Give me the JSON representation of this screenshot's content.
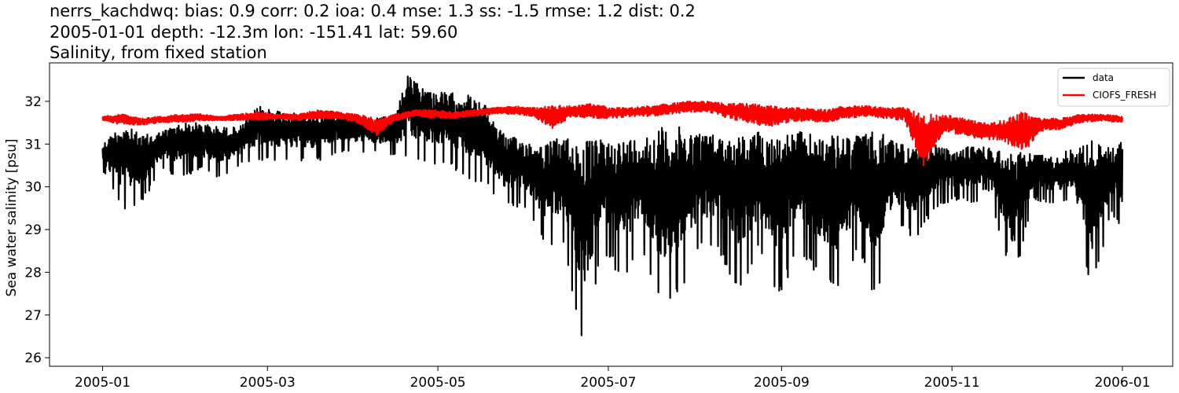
{
  "chart_data": {
    "type": "line",
    "title_lines": [
      "nerrs_kachdwq: bias: 0.9  corr: 0.2  ioa: 0.4  mse: 1.3  ss: -1.5  rmse: 1.2  dist: 0.2",
      "2005-01-01 depth: -12.3m lon: -151.41 lat: 59.60",
      "Salinity, from fixed station"
    ],
    "xlabel": "",
    "ylabel": "Sea water salinity [psu]",
    "x_range": [
      "2004-12-13",
      "2006-01-19"
    ],
    "ylim": [
      25.8,
      32.9
    ],
    "x_ticks": [
      "2005-01",
      "2005-03",
      "2005-05",
      "2005-07",
      "2005-09",
      "2005-11",
      "2006-01"
    ],
    "y_ticks": [
      26,
      27,
      28,
      29,
      30,
      31,
      32
    ],
    "grid": false,
    "legend_position": "top-right",
    "series": [
      {
        "name": "data",
        "color": "#000000",
        "envelope": {
          "x": [
            "2005-01-01",
            "2005-01-08",
            "2005-01-15",
            "2005-01-22",
            "2005-01-29",
            "2005-02-05",
            "2005-02-12",
            "2005-02-19",
            "2005-02-26",
            "2005-03-05",
            "2005-03-12",
            "2005-03-19",
            "2005-03-26",
            "2005-04-02",
            "2005-04-09",
            "2005-04-16",
            "2005-04-20",
            "2005-04-27",
            "2005-05-04",
            "2005-05-11",
            "2005-05-18",
            "2005-05-25",
            "2005-06-01",
            "2005-06-08",
            "2005-06-15",
            "2005-06-22",
            "2005-06-29",
            "2005-07-06",
            "2005-07-13",
            "2005-07-20",
            "2005-07-27",
            "2005-08-03",
            "2005-08-10",
            "2005-08-17",
            "2005-08-24",
            "2005-08-31",
            "2005-09-07",
            "2005-09-14",
            "2005-09-21",
            "2005-09-28",
            "2005-10-05",
            "2005-10-12",
            "2005-10-19",
            "2005-10-26",
            "2005-11-02",
            "2005-11-09",
            "2005-11-16",
            "2005-11-23",
            "2005-11-30",
            "2005-12-07",
            "2005-12-14",
            "2005-12-21",
            "2005-12-28",
            "2006-01-01"
          ],
          "max": [
            31.0,
            31.5,
            31.2,
            31.3,
            31.5,
            31.5,
            31.4,
            31.4,
            31.9,
            31.8,
            31.7,
            31.7,
            31.8,
            31.7,
            31.6,
            31.7,
            32.6,
            32.3,
            32.2,
            32.2,
            31.9,
            31.2,
            31.1,
            31.0,
            31.2,
            31.1,
            31.1,
            31.1,
            31.2,
            31.4,
            31.4,
            31.3,
            31.2,
            31.2,
            31.3,
            31.2,
            31.3,
            31.2,
            31.2,
            31.2,
            31.3,
            31.1,
            30.9,
            31.0,
            30.8,
            31.0,
            30.9,
            30.8,
            30.8,
            30.7,
            30.9,
            31.1,
            30.9,
            31.1
          ],
          "min": [
            30.4,
            29.4,
            29.6,
            30.4,
            30.2,
            30.4,
            30.2,
            30.5,
            30.6,
            30.6,
            30.6,
            30.6,
            30.8,
            30.8,
            30.8,
            30.7,
            30.6,
            30.5,
            30.5,
            30.2,
            30.0,
            29.5,
            29.5,
            28.6,
            28.6,
            26.1,
            28.5,
            27.8,
            28.4,
            27.0,
            27.4,
            28.5,
            28.4,
            27.5,
            28.5,
            27.3,
            28.5,
            27.8,
            27.4,
            28.5,
            27.2,
            29.0,
            28.8,
            29.5,
            29.7,
            29.6,
            29.4,
            27.7,
            29.7,
            29.6,
            29.6,
            27.4,
            29.4,
            28.9
          ]
        }
      },
      {
        "name": "CIOFS_FRESH",
        "color": "#ff0000",
        "envelope": {
          "x": [
            "2005-01-01",
            "2005-01-08",
            "2005-01-15",
            "2005-01-22",
            "2005-01-29",
            "2005-02-05",
            "2005-02-12",
            "2005-02-19",
            "2005-02-26",
            "2005-03-05",
            "2005-03-12",
            "2005-03-19",
            "2005-03-26",
            "2005-04-02",
            "2005-04-09",
            "2005-04-16",
            "2005-04-23",
            "2005-04-30",
            "2005-05-07",
            "2005-05-14",
            "2005-05-21",
            "2005-05-28",
            "2005-06-04",
            "2005-06-11",
            "2005-06-18",
            "2005-06-25",
            "2005-07-02",
            "2005-07-09",
            "2005-07-16",
            "2005-07-23",
            "2005-07-30",
            "2005-08-06",
            "2005-08-13",
            "2005-08-20",
            "2005-08-27",
            "2005-09-03",
            "2005-09-10",
            "2005-09-17",
            "2005-09-24",
            "2005-10-01",
            "2005-10-08",
            "2005-10-15",
            "2005-10-22",
            "2005-10-29",
            "2005-11-05",
            "2005-11-12",
            "2005-11-19",
            "2005-11-26",
            "2005-12-03",
            "2005-12-10",
            "2005-12-17",
            "2005-12-24",
            "2006-01-01"
          ],
          "max": [
            31.65,
            31.7,
            31.6,
            31.65,
            31.7,
            31.7,
            31.65,
            31.7,
            31.75,
            31.7,
            31.7,
            31.8,
            31.75,
            31.7,
            31.6,
            31.7,
            31.8,
            31.8,
            31.75,
            31.8,
            31.85,
            31.9,
            31.85,
            31.9,
            31.9,
            31.95,
            31.85,
            31.85,
            31.9,
            31.95,
            32.0,
            32.0,
            31.95,
            31.95,
            31.9,
            31.85,
            31.85,
            31.8,
            31.9,
            31.9,
            31.85,
            31.85,
            31.7,
            31.7,
            31.6,
            31.5,
            31.55,
            31.75,
            31.6,
            31.6,
            31.7,
            31.7,
            31.65
          ],
          "max_note": "",
          "min": [
            31.55,
            31.45,
            31.45,
            31.5,
            31.5,
            31.55,
            31.55,
            31.55,
            31.55,
            31.6,
            31.55,
            31.6,
            31.6,
            31.5,
            31.2,
            31.55,
            31.65,
            31.6,
            31.6,
            31.65,
            31.7,
            31.7,
            31.65,
            31.35,
            31.65,
            31.6,
            31.6,
            31.65,
            31.65,
            31.7,
            31.75,
            31.75,
            31.6,
            31.5,
            31.4,
            31.5,
            31.55,
            31.5,
            31.6,
            31.65,
            31.6,
            31.55,
            30.45,
            31.3,
            31.2,
            31.1,
            31.1,
            30.75,
            31.3,
            31.35,
            31.5,
            31.55,
            31.5
          ]
        }
      }
    ]
  }
}
